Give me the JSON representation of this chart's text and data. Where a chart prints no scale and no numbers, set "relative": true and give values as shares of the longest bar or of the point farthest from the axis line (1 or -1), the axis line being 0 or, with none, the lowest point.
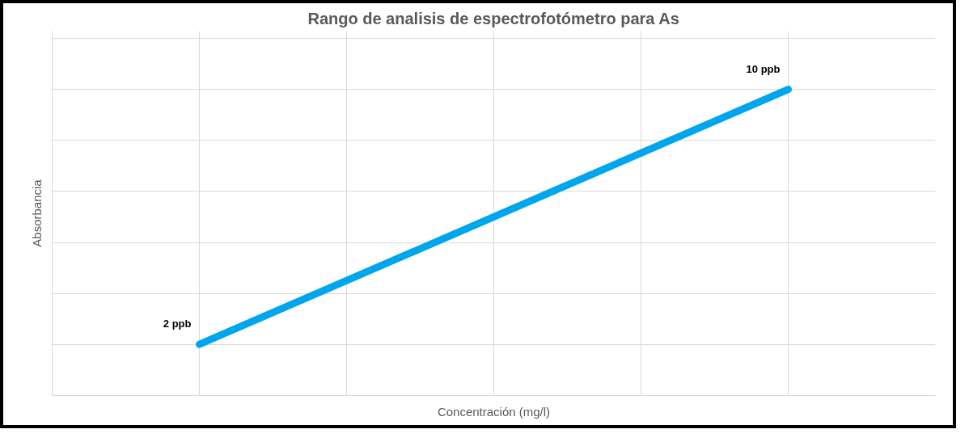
{
  "chart_data": {
    "type": "line",
    "title": "Rango de analisis de espectrofotómetro para As",
    "xlabel": "Concentración (mg/l)",
    "ylabel": "Absorbancia",
    "categories": [
      null,
      null
    ],
    "relative": true,
    "series": [
      {
        "color": "#00a6ed",
        "values": [
          0.167,
          1
        ]
      }
    ],
    "annotations": [
      "2 ppb",
      "10 ppb"
    ],
    "grid": true,
    "tick_labels": false,
    "marker": "none",
    "line_style": "solid"
  }
}
